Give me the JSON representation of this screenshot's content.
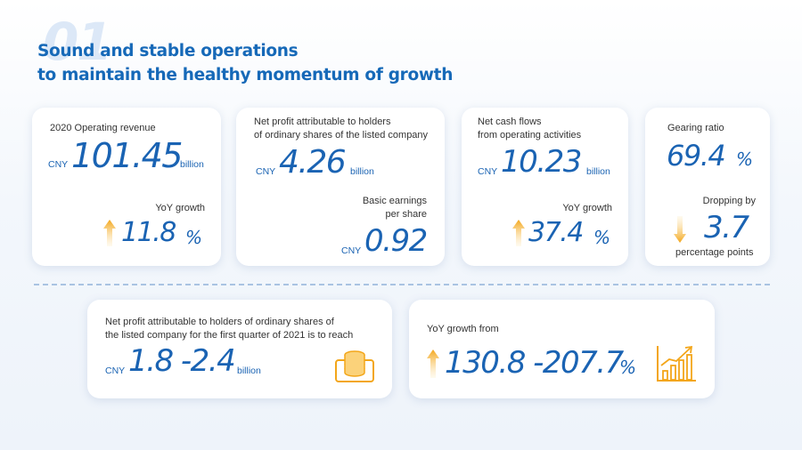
{
  "header": {
    "bg_number": "01",
    "title_line1": "Sound and stable operations",
    "title_line2": "to maintain the healthy momentum of growth"
  },
  "revenue": {
    "label": "2020 Operating revenue",
    "currency": "CNY",
    "value": "101.45",
    "unit": "billion",
    "growth_label": "YoY growth",
    "growth_value": "11.8",
    "growth_unit": "%",
    "growth_direction": "up-arrow-icon"
  },
  "net_profit": {
    "label_line1": "Net profit attributable to holders",
    "label_line2": "of ordinary shares of the listed company",
    "currency": "CNY",
    "value": "4.26",
    "unit": "billion",
    "eps_label_line1": "Basic earnings",
    "eps_label_line2": "per share",
    "eps_currency": "CNY",
    "eps_value": "0.92"
  },
  "cash_flow": {
    "label_line1": "Net cash flows",
    "label_line2": "from operating activities",
    "currency": "CNY",
    "value": "10.23",
    "unit": "billion",
    "growth_label": "YoY growth",
    "growth_value": "37.4",
    "growth_unit": "%",
    "growth_direction": "up-arrow-icon"
  },
  "gearing": {
    "label": "Gearing ratio",
    "value": "69.4",
    "unit": "%",
    "drop_label": "Dropping by",
    "drop_value": "3.7",
    "drop_unit": "percentage points",
    "drop_direction": "down-arrow-icon"
  },
  "q1_forecast": {
    "label_line1": "Net profit attributable to holders of ordinary shares of",
    "label_line2": "the listed company for the first quarter of 2021 is to reach",
    "currency": "CNY",
    "value": "1.8 -2.4",
    "unit": "billion",
    "icon": "coin-stack-icon"
  },
  "q1_growth": {
    "label": "YoY growth from",
    "value": "130.8 -207.7",
    "unit": "%",
    "direction": "up-arrow-icon",
    "icon": "growth-chart-icon"
  },
  "colors": {
    "primary_blue": "#1a63b3",
    "accent_gold": "#f3a61a",
    "divider": "#a9c3e2"
  }
}
